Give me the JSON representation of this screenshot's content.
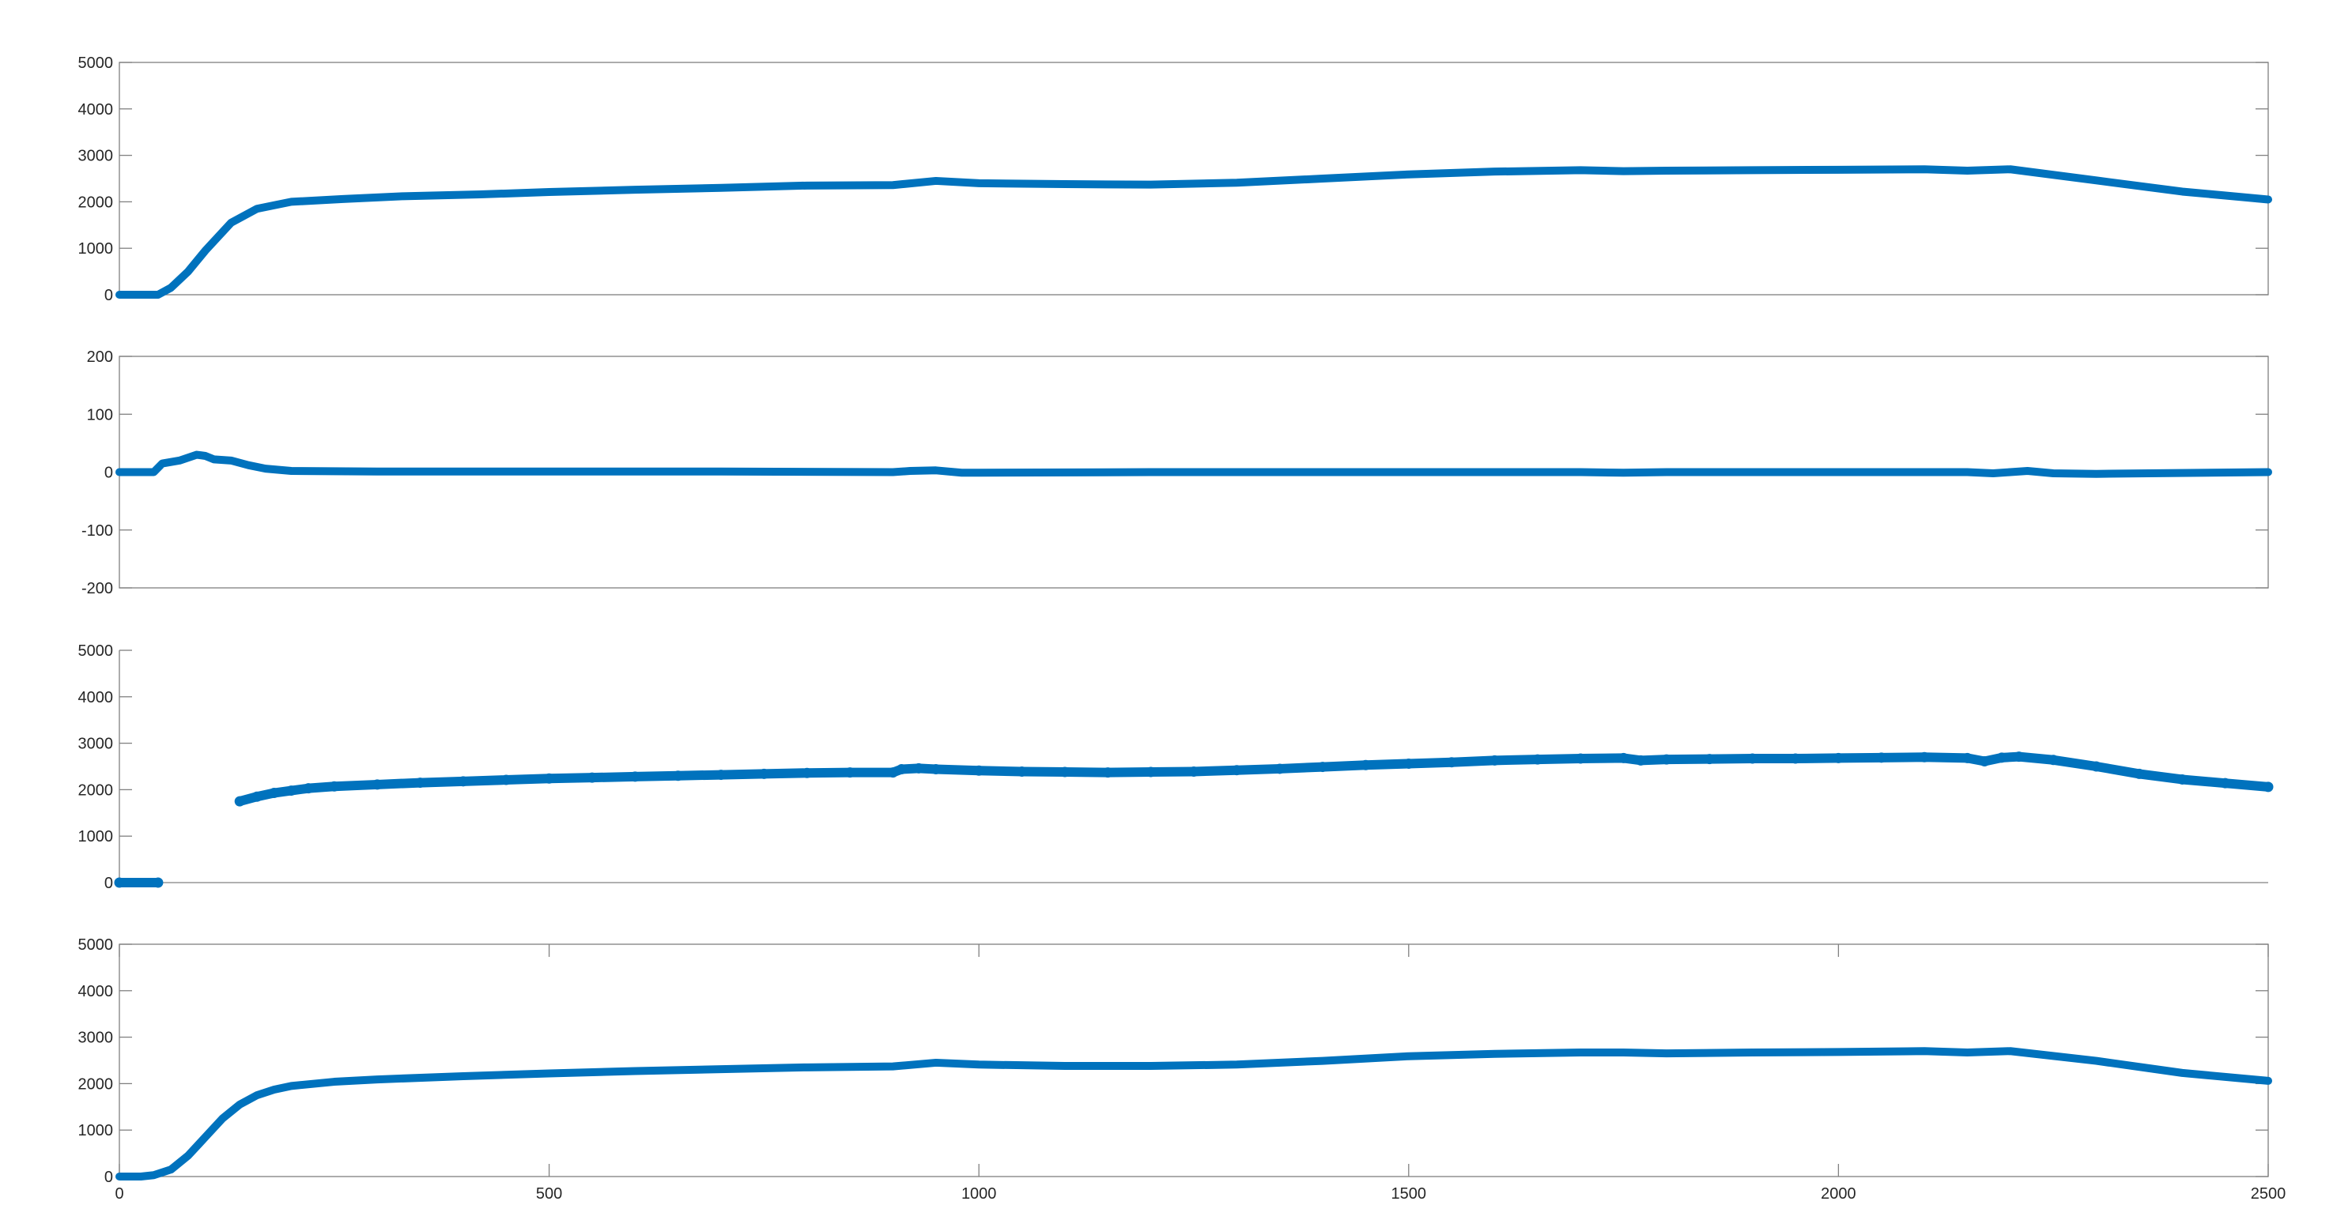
{
  "colors": {
    "series": "#0072BD",
    "axes": "#808080",
    "text": "#262626",
    "background": "#FFFFFF"
  },
  "chart_data": [
    {
      "type": "line",
      "title": "",
      "xlabel": "",
      "ylabel": "",
      "xlim": [
        0,
        2500
      ],
      "ylim": [
        0,
        5000
      ],
      "yticks": [
        "0",
        "1000",
        "2000",
        "3000",
        "4000",
        "5000"
      ],
      "xticks": [],
      "box": true,
      "grid": false,
      "marker": "none",
      "series": [
        {
          "x": [
            0,
            45,
            60,
            80,
            100,
            130,
            160,
            200,
            260,
            330,
            420,
            500,
            600,
            700,
            800,
            900,
            950,
            1000,
            1100,
            1200,
            1300,
            1400,
            1500,
            1600,
            1700,
            1750,
            1800,
            1900,
            2000,
            2100,
            2150,
            2200,
            2300,
            2400,
            2500
          ],
          "y": [
            0,
            0,
            150,
            500,
            950,
            1550,
            1850,
            2000,
            2060,
            2120,
            2160,
            2210,
            2260,
            2300,
            2350,
            2360,
            2450,
            2400,
            2380,
            2370,
            2410,
            2500,
            2590,
            2650,
            2680,
            2660,
            2670,
            2680,
            2690,
            2700,
            2670,
            2700,
            2460,
            2220,
            2050
          ]
        }
      ]
    },
    {
      "type": "line",
      "title": "",
      "xlabel": "",
      "ylabel": "",
      "xlim": [
        0,
        2500
      ],
      "ylim": [
        -200,
        200
      ],
      "yticks": [
        "-200",
        "-100",
        "0",
        "100",
        "200"
      ],
      "xticks": [],
      "box": true,
      "grid": false,
      "marker": "none",
      "series": [
        {
          "x": [
            0,
            40,
            50,
            70,
            90,
            100,
            110,
            130,
            150,
            170,
            200,
            300,
            500,
            700,
            900,
            920,
            950,
            980,
            1000,
            1200,
            1500,
            1700,
            1750,
            1800,
            2000,
            2150,
            2180,
            2200,
            2220,
            2250,
            2300,
            2500
          ],
          "y": [
            0,
            0,
            15,
            20,
            30,
            28,
            22,
            20,
            12,
            6,
            2,
            1,
            1,
            1,
            0,
            2,
            3,
            -1,
            -1,
            0,
            0,
            0,
            -1,
            0,
            0,
            0,
            -2,
            0,
            2,
            -2,
            -3,
            0
          ]
        }
      ]
    },
    {
      "type": "scatter",
      "title": "",
      "xlabel": "",
      "ylabel": "",
      "xlim": [
        0,
        2500
      ],
      "ylim": [
        0,
        5000
      ],
      "yticks": [
        "0",
        "1000",
        "2000",
        "3000",
        "4000",
        "5000"
      ],
      "xticks": [],
      "box": false,
      "grid": false,
      "marker": "filled circle",
      "series": [
        {
          "x": [
            0,
            45,
            140,
            160,
            180,
            200,
            220,
            250,
            300,
            350,
            400,
            450,
            500,
            550,
            600,
            650,
            700,
            750,
            800,
            850,
            900,
            910,
            930,
            950,
            1000,
            1050,
            1100,
            1150,
            1200,
            1250,
            1300,
            1350,
            1400,
            1450,
            1500,
            1550,
            1600,
            1650,
            1700,
            1750,
            1770,
            1800,
            1850,
            1900,
            1950,
            2000,
            2050,
            2100,
            2150,
            2170,
            2190,
            2210,
            2250,
            2300,
            2350,
            2400,
            2450,
            2500
          ],
          "y": [
            0,
            0,
            1750,
            1850,
            1930,
            1980,
            2030,
            2070,
            2110,
            2150,
            2180,
            2210,
            2240,
            2260,
            2280,
            2300,
            2320,
            2340,
            2360,
            2370,
            2370,
            2440,
            2460,
            2440,
            2410,
            2390,
            2380,
            2370,
            2380,
            2390,
            2420,
            2450,
            2490,
            2530,
            2560,
            2590,
            2630,
            2650,
            2670,
            2680,
            2630,
            2650,
            2660,
            2670,
            2670,
            2680,
            2690,
            2700,
            2680,
            2610,
            2690,
            2710,
            2640,
            2500,
            2340,
            2220,
            2140,
            2060
          ]
        }
      ]
    },
    {
      "type": "line",
      "title": "",
      "xlabel": "",
      "ylabel": "",
      "xlim": [
        0,
        2500
      ],
      "ylim": [
        0,
        5000
      ],
      "yticks": [
        "0",
        "1000",
        "2000",
        "3000",
        "4000",
        "5000"
      ],
      "xticks": [
        "0",
        "500",
        "1000",
        "1500",
        "2000",
        "2500"
      ],
      "box": true,
      "grid": false,
      "marker": "none",
      "series": [
        {
          "x": [
            0,
            25,
            40,
            60,
            80,
            100,
            120,
            140,
            160,
            180,
            200,
            250,
            300,
            400,
            500,
            600,
            700,
            800,
            900,
            950,
            1000,
            1100,
            1200,
            1300,
            1400,
            1500,
            1600,
            1700,
            1750,
            1800,
            1900,
            2000,
            2100,
            2150,
            2200,
            2300,
            2400,
            2500
          ],
          "y": [
            0,
            0,
            30,
            150,
            450,
            850,
            1250,
            1550,
            1750,
            1870,
            1950,
            2040,
            2090,
            2160,
            2220,
            2270,
            2310,
            2350,
            2370,
            2450,
            2410,
            2380,
            2380,
            2410,
            2490,
            2590,
            2640,
            2670,
            2670,
            2650,
            2670,
            2680,
            2700,
            2670,
            2700,
            2490,
            2230,
            2060
          ]
        }
      ]
    }
  ]
}
